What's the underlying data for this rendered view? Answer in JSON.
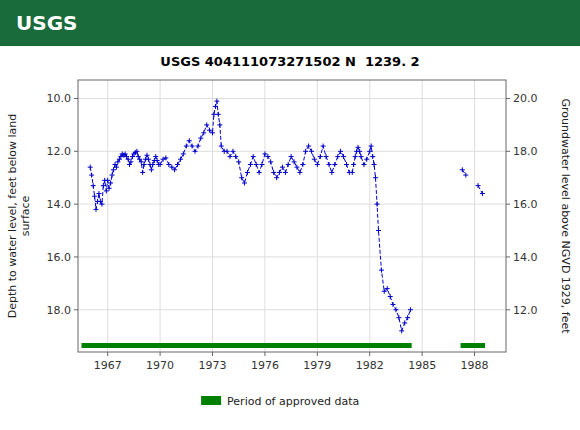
{
  "chart_data": {
    "type": "line",
    "title": "USGS 404111073271502 N  1239. 2",
    "annotations": [
      {
        "text": "USGS"
      }
    ],
    "y_label": "Depth to water level, feet below land\nsurface",
    "y2_label": "Groundwater level above NGVD 1929, feet",
    "xlim": [
      1965.3,
      1989.8
    ],
    "xticks": [
      1967,
      1970,
      1973,
      1976,
      1979,
      1982,
      1985,
      1988
    ],
    "ylim": [
      19.6,
      9.3
    ],
    "yticks": [
      {
        "value": 10.0,
        "label": "10.0"
      },
      {
        "value": 12.0,
        "label": "12.0"
      },
      {
        "value": 14.0,
        "label": "14.0"
      },
      {
        "value": 16.0,
        "label": "16.0"
      },
      {
        "value": 18.0,
        "label": "18.0"
      }
    ],
    "y2lim": [
      10.4,
      20.7
    ],
    "y2ticks": [
      {
        "value": 20.0,
        "label": "20.0"
      },
      {
        "value": 18.0,
        "label": "18.0"
      },
      {
        "value": 16.0,
        "label": "16.0"
      },
      {
        "value": 14.0,
        "label": "14.0"
      },
      {
        "value": 12.0,
        "label": "12.0"
      }
    ],
    "grid": true,
    "series": [
      {
        "type": "line",
        "color": "#0000cc",
        "marker": "plus",
        "line_style": "dashed",
        "x": [
          1966.0,
          1966.08,
          1966.17,
          1966.25,
          1966.33,
          1966.42,
          1966.5,
          1966.58,
          1966.67,
          1966.75,
          1966.83,
          1966.92,
          1967.0,
          1967.08,
          1967.17,
          1967.25,
          1967.33,
          1967.42,
          1967.5,
          1967.58,
          1967.67,
          1967.75,
          1967.83,
          1967.92,
          1968.0,
          1968.08,
          1968.17,
          1968.25,
          1968.33,
          1968.42,
          1968.5,
          1968.58,
          1968.67,
          1968.75,
          1968.83,
          1968.92,
          1969.0,
          1969.08,
          1969.17,
          1969.25,
          1969.33,
          1969.42,
          1969.5,
          1969.58,
          1969.67,
          1969.75,
          1969.83,
          1969.92,
          1970.0,
          1970.17,
          1970.33,
          1970.5,
          1970.67,
          1970.83,
          1971.0,
          1971.17,
          1971.33,
          1971.5,
          1971.67,
          1971.83,
          1972.0,
          1972.17,
          1972.33,
          1972.5,
          1972.67,
          1972.83,
          1973.0,
          1973.08,
          1973.17,
          1973.25,
          1973.33,
          1973.42,
          1973.5,
          1973.67,
          1973.83,
          1974.0,
          1974.17,
          1974.33,
          1974.5,
          1974.67,
          1974.83,
          1975.0,
          1975.17,
          1975.33,
          1975.5,
          1975.67,
          1975.83,
          1976.0,
          1976.17,
          1976.33,
          1976.5,
          1976.67,
          1976.83,
          1977.0,
          1977.17,
          1977.33,
          1977.5,
          1977.67,
          1977.83,
          1978.0,
          1978.17,
          1978.33,
          1978.5,
          1978.67,
          1978.83,
          1979.0,
          1979.17,
          1979.33,
          1979.5,
          1979.67,
          1979.83,
          1980.0,
          1980.17,
          1980.33,
          1980.5,
          1980.67,
          1980.83,
          1981.0,
          1981.08,
          1981.17,
          1981.25,
          1981.33,
          1981.42,
          1981.5,
          1981.67,
          1981.83,
          1982.0,
          1982.08,
          1982.17,
          1982.25,
          1982.33,
          1982.42,
          1982.5,
          1982.67,
          1982.83,
          1983.0,
          1983.17,
          1983.33,
          1983.5,
          1983.67,
          1983.83,
          1984.0,
          1984.17,
          1984.33
        ],
        "values": [
          12.6,
          12.9,
          13.3,
          13.7,
          14.2,
          13.9,
          13.6,
          13.9,
          14.0,
          13.3,
          13.1,
          13.5,
          13.1,
          13.4,
          13.2,
          12.9,
          12.7,
          12.5,
          12.6,
          12.4,
          12.3,
          12.2,
          12.1,
          12.15,
          12.1,
          12.2,
          12.3,
          12.5,
          12.4,
          12.2,
          12.1,
          12.05,
          12.0,
          12.2,
          12.3,
          12.4,
          12.8,
          12.5,
          12.3,
          12.15,
          12.3,
          12.5,
          12.7,
          12.5,
          12.35,
          12.2,
          12.35,
          12.5,
          12.5,
          12.3,
          12.25,
          12.5,
          12.6,
          12.7,
          12.5,
          12.3,
          12.1,
          11.8,
          11.6,
          11.8,
          12.0,
          11.8,
          11.5,
          11.3,
          11.0,
          11.2,
          11.3,
          10.6,
          10.3,
          10.1,
          10.6,
          11.0,
          11.8,
          12.0,
          12.0,
          12.2,
          12.0,
          12.2,
          12.4,
          13.0,
          13.2,
          12.8,
          12.5,
          12.2,
          12.5,
          12.8,
          12.5,
          12.1,
          12.2,
          12.4,
          12.8,
          13.0,
          12.8,
          12.6,
          12.8,
          12.5,
          12.2,
          12.4,
          12.6,
          12.8,
          12.5,
          12.0,
          11.8,
          12.0,
          12.3,
          12.5,
          12.2,
          11.8,
          12.2,
          12.5,
          12.8,
          12.5,
          12.2,
          12.0,
          12.2,
          12.5,
          12.8,
          12.8,
          12.5,
          12.2,
          12.0,
          11.85,
          12.0,
          12.2,
          12.5,
          12.3,
          12.0,
          11.8,
          12.2,
          12.5,
          13.0,
          14.0,
          15.0,
          16.5,
          17.3,
          17.2,
          17.5,
          17.8,
          18.0,
          18.3,
          18.8,
          18.5,
          18.3,
          18.0
        ]
      },
      {
        "type": "line",
        "color": "#0000cc",
        "marker": "plus",
        "line_style": "dashed",
        "x": [
          1987.3,
          1987.5
        ],
        "values": [
          12.7,
          12.9
        ]
      },
      {
        "type": "line",
        "color": "#0000cc",
        "marker": "plus",
        "line_style": "dashed",
        "x": [
          1988.2,
          1988.45
        ],
        "values": [
          13.3,
          13.6
        ]
      },
      {
        "type": "period",
        "name": "Period of approved data",
        "color": "#008000",
        "starts": [
          1965.5,
          1987.2
        ],
        "ends": [
          1984.4,
          1988.6
        ]
      }
    ]
  }
}
